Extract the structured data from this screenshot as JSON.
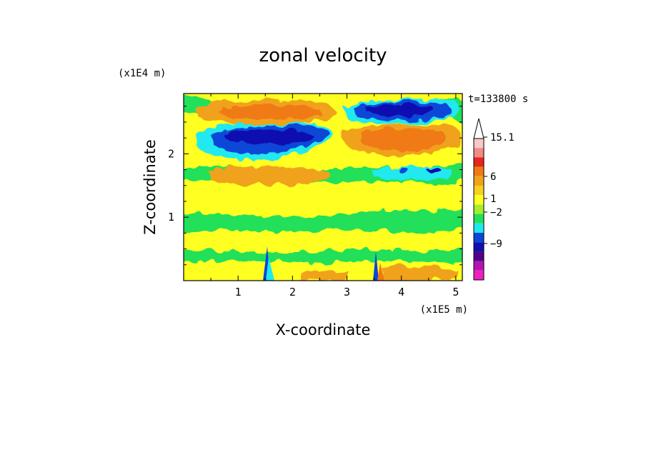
{
  "chart_data": {
    "type": "heatmap",
    "title": "zonal velocity",
    "xlabel": "X-coordinate",
    "ylabel": "Z-coordinate",
    "x_unit": "(x1E5 m)",
    "y_unit": "(x1E4 m)",
    "time_label": "t=133800 s",
    "xlim": [
      0,
      5.12
    ],
    "ylim": [
      0,
      2.95
    ],
    "x_ticks": [
      "1",
      "2",
      "3",
      "4",
      "5"
    ],
    "y_ticks": [
      "1",
      "2"
    ],
    "colorbar": {
      "labels": [
        "15.1",
        "6",
        "1",
        "−2",
        "−9"
      ],
      "colors": [
        "#ffffff",
        "#f9c8c8",
        "#f28a8a",
        "#e8251c",
        "#f07a12",
        "#f0a21a",
        "#f6d21c",
        "#ffff20",
        "#a6ee2a",
        "#22e05a",
        "#20e8f0",
        "#0a46d8",
        "#1010b0",
        "#50008a",
        "#b414b4",
        "#f01ec0"
      ]
    },
    "field_features": [
      {
        "kind": "positive",
        "x": [
          0.5,
          2.7
        ],
        "z": [
          2.45,
          2.85
        ],
        "peak": 6
      },
      {
        "kind": "negative",
        "x": [
          3.0,
          4.9
        ],
        "z": [
          2.55,
          2.85
        ],
        "peak": -9
      },
      {
        "kind": "negative",
        "x": [
          0.4,
          2.7
        ],
        "z": [
          2.05,
          2.45
        ],
        "peak": -9
      },
      {
        "kind": "positive",
        "x": [
          3.0,
          4.9
        ],
        "z": [
          2.0,
          2.45
        ],
        "peak": 6
      },
      {
        "kind": "positive",
        "x": [
          0.5,
          2.5
        ],
        "z": [
          1.6,
          1.85
        ],
        "peak": 3
      },
      {
        "kind": "negative",
        "x": [
          3.6,
          5.0
        ],
        "z": [
          1.6,
          1.8
        ],
        "peak": -5
      }
    ]
  }
}
